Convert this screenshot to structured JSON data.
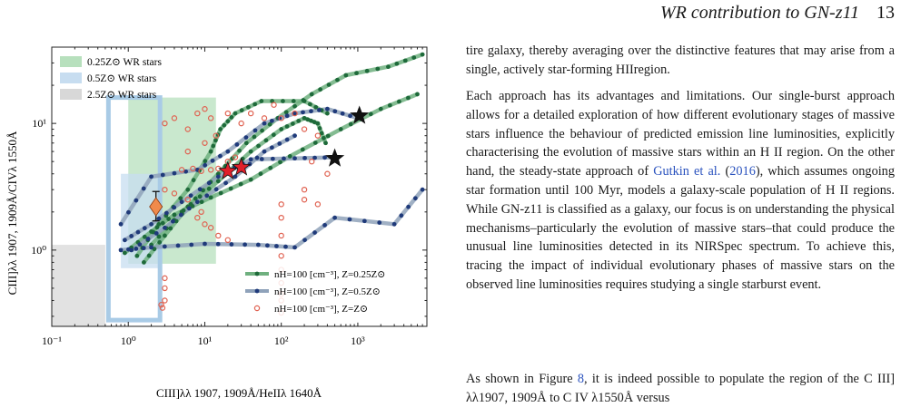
{
  "header": {
    "title": "WR contribution to GN-z11",
    "page_number": "13"
  },
  "paragraphs": [
    {
      "text": "tire galaxy, thereby averaging over the distinctive features that may arise from a single, actively star-forming HIIregion."
    },
    {
      "pre": "Each approach has its advantages and limitations. Our single-burst approach allows for a detailed exploration of how different evolutionary stages of massive stars influence the behaviour of predicted emission line luminosities, explicitly characterising the evolution of massive stars within an H II region. On the other hand, the steady-state approach of ",
      "cite": "Gutkin et al.",
      "cite_paren_open": " (",
      "cite_year": "2016",
      "cite_paren_close": ")",
      "post": ", which assumes ongoing star formation until 100 Myr, models a galaxy-scale population of H II regions. While GN-z11 is classified as a galaxy, our focus is on understanding the physical mechanisms–particularly the evolution of massive stars–that could produce the unusual line luminosities detected in its NIRSpec spectrum. To achieve this, tracing the impact of individual evolutionary phases of massive stars on the observed line luminosities requires studying a single starburst event."
    },
    {
      "pre": "As shown in Figure ",
      "fig": "8",
      "post": ", it is indeed possible to populate the region of the C III] λλ1907, 1909Å to C IV λ1550Å versus"
    }
  ],
  "chart_data": {
    "type": "scatter",
    "xscale": "log",
    "yscale": "log",
    "xlim": [
      0.1,
      8000
    ],
    "ylim": [
      0.25,
      40
    ],
    "xlabel": "CIII]λλ 1907, 1909Å/HeIIλ 1640Å",
    "ylabel": "CIII]λλ 1907, 1909Å/CIVλ 1550Å",
    "xticks": [
      {
        "v": 0.1,
        "label": "10⁻¹"
      },
      {
        "v": 1,
        "label": "10⁰"
      },
      {
        "v": 10,
        "label": "10¹"
      },
      {
        "v": 100,
        "label": "10²"
      },
      {
        "v": 1000,
        "label": "10³"
      }
    ],
    "yticks": [
      {
        "v": 1,
        "label": "10⁰"
      },
      {
        "v": 10,
        "label": "10¹"
      }
    ],
    "regions": [
      {
        "name": "0.25Z⊙ WR stars",
        "color": "#b7e0bd",
        "x": [
          1,
          14
        ],
        "y": [
          0.78,
          16
        ]
      },
      {
        "name": "0.5Z⊙ WR stars",
        "color": "#c7ddf0",
        "x": [
          0.8,
          2.6
        ],
        "y": [
          0.72,
          4
        ]
      },
      {
        "name": "2.5Z⊙ WR stars",
        "color": "#d8d8d8",
        "x": [
          0.1,
          0.5
        ],
        "y": [
          0.25,
          1.1
        ]
      }
    ],
    "outline_box": {
      "color": "#a9cbe6",
      "x": [
        0.55,
        2.6
      ],
      "y": [
        0.28,
        16
      ]
    },
    "series": [
      {
        "name": "nH=100 [cm⁻³], Z=0.25Z⊙",
        "color": "#6fb07f",
        "marker": "#1e6a3a",
        "lines": [
          [
            [
              1.6,
              0.8
            ],
            [
              3,
              1.3
            ],
            [
              6,
              2.2
            ],
            [
              15,
              4
            ],
            [
              35,
              7
            ],
            [
              90,
              11
            ],
            [
              250,
              17
            ],
            [
              700,
              24
            ],
            [
              2500,
              28
            ],
            [
              7000,
              35
            ]
          ],
          [
            [
              1.3,
              0.9
            ],
            [
              2.5,
              1.6
            ],
            [
              6,
              3
            ],
            [
              12,
              6
            ],
            [
              16,
              9
            ],
            [
              25,
              12
            ],
            [
              55,
              15
            ],
            [
              200,
              15
            ],
            [
              400,
              12
            ]
          ],
          [
            [
              2,
              1.1
            ],
            [
              5,
              2
            ],
            [
              15,
              3.5
            ],
            [
              40,
              6
            ],
            [
              100,
              9
            ],
            [
              200,
              11
            ],
            [
              300,
              10
            ],
            [
              380,
              7
            ]
          ],
          [
            [
              0.9,
              0.95
            ],
            [
              2,
              1.4
            ],
            [
              4,
              1.9
            ],
            [
              12,
              2.6
            ],
            [
              40,
              3.6
            ],
            [
              130,
              5.5
            ],
            [
              600,
              9
            ],
            [
              2000,
              13
            ],
            [
              6000,
              17
            ]
          ]
        ]
      },
      {
        "name": "nH=100 [cm⁻³], Z=0.5Z⊙",
        "color": "#8fa2ba",
        "marker": "#1f3a7a",
        "lines": [
          [
            [
              0.8,
              1.0
            ],
            [
              2,
              1.05
            ],
            [
              10,
              1.12
            ],
            [
              50,
              1.1
            ],
            [
              150,
              1.05
            ],
            [
              500,
              1.8
            ],
            [
              3000,
              1.6
            ],
            [
              7000,
              3
            ]
          ],
          [
            [
              0.8,
              1.6
            ],
            [
              2,
              3.8
            ],
            [
              8,
              4.3
            ],
            [
              20,
              6
            ],
            [
              60,
              10
            ],
            [
              150,
              12
            ],
            [
              400,
              13
            ],
            [
              1000,
              11
            ]
          ],
          [
            [
              0.9,
              1.2
            ],
            [
              2,
              1.6
            ],
            [
              5,
              2.4
            ],
            [
              15,
              3.8
            ],
            [
              40,
              5.2
            ],
            [
              150,
              5.3
            ],
            [
              500,
              5.4
            ]
          ],
          [
            [
              1.1,
              1.0
            ],
            [
              3,
              1.5
            ],
            [
              8,
              2.4
            ],
            [
              25,
              3.8
            ],
            [
              60,
              6
            ],
            [
              150,
              8
            ]
          ]
        ]
      },
      {
        "name": "nH=100 [cm⁻³], Z=Z⊙",
        "color": "#e06150",
        "points": [
          [
            3,
            10
          ],
          [
            4,
            11
          ],
          [
            6,
            9
          ],
          [
            8,
            12
          ],
          [
            10,
            13
          ],
          [
            12,
            11
          ],
          [
            20,
            12
          ],
          [
            30,
            10
          ],
          [
            40,
            12
          ],
          [
            60,
            11
          ],
          [
            80,
            14
          ],
          [
            100,
            11
          ],
          [
            150,
            12
          ],
          [
            200,
            9
          ],
          [
            5,
            4.3
          ],
          [
            7,
            4.4
          ],
          [
            9,
            4.2
          ],
          [
            12,
            4.3
          ],
          [
            15,
            4.4
          ],
          [
            20,
            5
          ],
          [
            25,
            5.4
          ],
          [
            6,
            6
          ],
          [
            10,
            7
          ],
          [
            14,
            8
          ],
          [
            3,
            3
          ],
          [
            4,
            2.8
          ],
          [
            6,
            2.5
          ],
          [
            9,
            2
          ],
          [
            12,
            1.5
          ],
          [
            15,
            1.3
          ],
          [
            20,
            1.2
          ],
          [
            8,
            1.8
          ],
          [
            10,
            1.6
          ],
          [
            3,
            0.6
          ],
          [
            3,
            0.5
          ],
          [
            2.7,
            0.37
          ],
          [
            2.8,
            0.35
          ],
          [
            3,
            0.4
          ],
          [
            100,
            0.7
          ],
          [
            100,
            0.9
          ],
          [
            100,
            0.55
          ],
          [
            100,
            0.45
          ],
          [
            100,
            0.4
          ],
          [
            100,
            0.32
          ],
          [
            100,
            1.3
          ],
          [
            100,
            1.8
          ],
          [
            100,
            2.3
          ],
          [
            200,
            3
          ],
          [
            200,
            2.5
          ],
          [
            300,
            2.3
          ],
          [
            250,
            5
          ],
          [
            300,
            8
          ],
          [
            400,
            4
          ]
        ]
      }
    ],
    "stars": [
      {
        "x": 20,
        "y": 4.2,
        "color": "#e0202a"
      },
      {
        "x": 30,
        "y": 4.5,
        "color": "#e0202a"
      },
      {
        "x": 500,
        "y": 5.3,
        "color": "#111111"
      },
      {
        "x": 1050,
        "y": 11.5,
        "color": "#111111"
      }
    ],
    "observation": {
      "x": 2.3,
      "y": 2.2,
      "color": "#f08a4b",
      "y_err": [
        1.7,
        2.9
      ],
      "x_err": [
        1.9,
        2.8
      ]
    },
    "legend_top": "top-left",
    "legend_bottom": "bottom-right"
  }
}
